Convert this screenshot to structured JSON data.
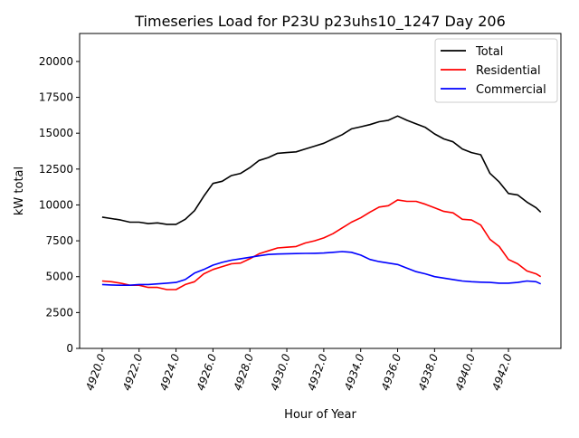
{
  "chart_data": {
    "type": "line",
    "title": "Timeseries Load for P23U p23uhs10_1247  Day 206",
    "xlabel": "Hour of Year",
    "ylabel": "kW total",
    "xlim": [
      4918.78,
      4944.84
    ],
    "ylim": [
      0,
      21950
    ],
    "xticks": [
      4920,
      4922,
      4924,
      4926,
      4928,
      4930,
      4932,
      4934,
      4936,
      4938,
      4940,
      4942
    ],
    "xtick_labels": [
      "4920.0",
      "4922.0",
      "4924.0",
      "4926.0",
      "4928.0",
      "4930.0",
      "4932.0",
      "4934.0",
      "4936.0",
      "4938.0",
      "4940.0",
      "4942.0"
    ],
    "yticks": [
      0,
      2500,
      5000,
      7500,
      10000,
      12500,
      15000,
      17500,
      20000
    ],
    "ytick_labels": [
      "0",
      "2500",
      "5000",
      "7500",
      "10000",
      "12500",
      "15000",
      "17500",
      "20000"
    ],
    "grid": false,
    "legend_position": "top-right",
    "x": [
      4920,
      4920.5,
      4921,
      4921.5,
      4922,
      4922.5,
      4923,
      4923.5,
      4924,
      4924.5,
      4925,
      4925.5,
      4926,
      4926.5,
      4927,
      4927.5,
      4928,
      4928.5,
      4929,
      4929.5,
      4930,
      4930.5,
      4931,
      4931.5,
      4932,
      4932.5,
      4933,
      4933.5,
      4934,
      4934.5,
      4935,
      4935.5,
      4936,
      4936.5,
      4937,
      4937.5,
      4938,
      4938.5,
      4939,
      4939.5,
      4940,
      4940.5,
      4941,
      4941.5,
      4942,
      4942.5,
      4943,
      4943.5,
      4943.75
    ],
    "series": [
      {
        "name": "Total",
        "color": "#000000",
        "values": [
          9150,
          9050,
          8950,
          8800,
          8800,
          8700,
          8750,
          8650,
          8650,
          9000,
          9600,
          10600,
          11500,
          11650,
          12050,
          12200,
          12600,
          13100,
          13300,
          13600,
          13650,
          13700,
          13900,
          14100,
          14300,
          14600,
          14900,
          15300,
          15450,
          15600,
          15800,
          15900,
          16200,
          15900,
          15650,
          15400,
          14950,
          14600,
          14400,
          13900,
          13650,
          13500,
          12200,
          11600,
          10800,
          10700,
          10200,
          9800,
          9500
        ]
      },
      {
        "name": "Residential",
        "color": "#ff0000",
        "values": [
          4700,
          4650,
          4550,
          4400,
          4400,
          4250,
          4250,
          4100,
          4100,
          4450,
          4650,
          5200,
          5500,
          5700,
          5900,
          5950,
          6250,
          6600,
          6800,
          7000,
          7050,
          7100,
          7350,
          7500,
          7700,
          8000,
          8400,
          8800,
          9100,
          9500,
          9850,
          9950,
          10350,
          10250,
          10250,
          10050,
          9800,
          9550,
          9450,
          9000,
          8950,
          8600,
          7600,
          7100,
          6200,
          5900,
          5400,
          5200,
          5000
        ]
      },
      {
        "name": "Commercial",
        "color": "#0000ff",
        "values": [
          4450,
          4420,
          4400,
          4400,
          4450,
          4450,
          4500,
          4550,
          4600,
          4800,
          5250,
          5500,
          5800,
          6000,
          6150,
          6250,
          6350,
          6450,
          6550,
          6580,
          6600,
          6610,
          6620,
          6630,
          6650,
          6700,
          6750,
          6700,
          6500,
          6200,
          6050,
          5950,
          5850,
          5600,
          5350,
          5200,
          5000,
          4900,
          4800,
          4700,
          4650,
          4620,
          4600,
          4550,
          4550,
          4600,
          4700,
          4650,
          4500
        ]
      }
    ]
  }
}
